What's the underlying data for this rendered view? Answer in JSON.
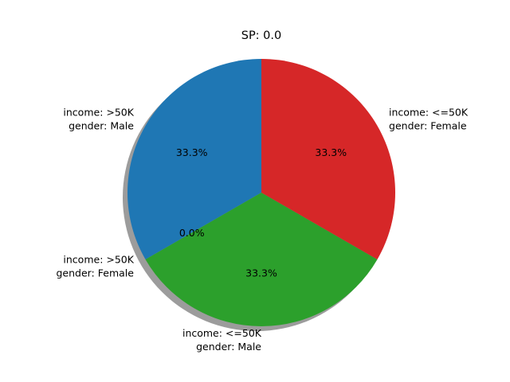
{
  "chart_data": {
    "type": "pie",
    "title": "SP: 0.0",
    "shadow": true,
    "start_angle_deg": 90,
    "direction": "counterclockwise",
    "slices": [
      {
        "label_line1": "income: >50K",
        "label_line2": "gender: Male",
        "value": 33.3,
        "pct_label": "33.3%",
        "color": "#1f77b4"
      },
      {
        "label_line1": "income: >50K",
        "label_line2": "gender: Female",
        "value": 0.0,
        "pct_label": "0.0%",
        "color": "#ff7f0e"
      },
      {
        "label_line1": "income: <=50K",
        "label_line2": "gender: Male",
        "value": 33.3,
        "pct_label": "33.3%",
        "color": "#2ca02c"
      },
      {
        "label_line1": "income: <=50K",
        "label_line2": "gender: Female",
        "value": 33.3,
        "pct_label": "33.3%",
        "color": "#d62728"
      }
    ]
  }
}
